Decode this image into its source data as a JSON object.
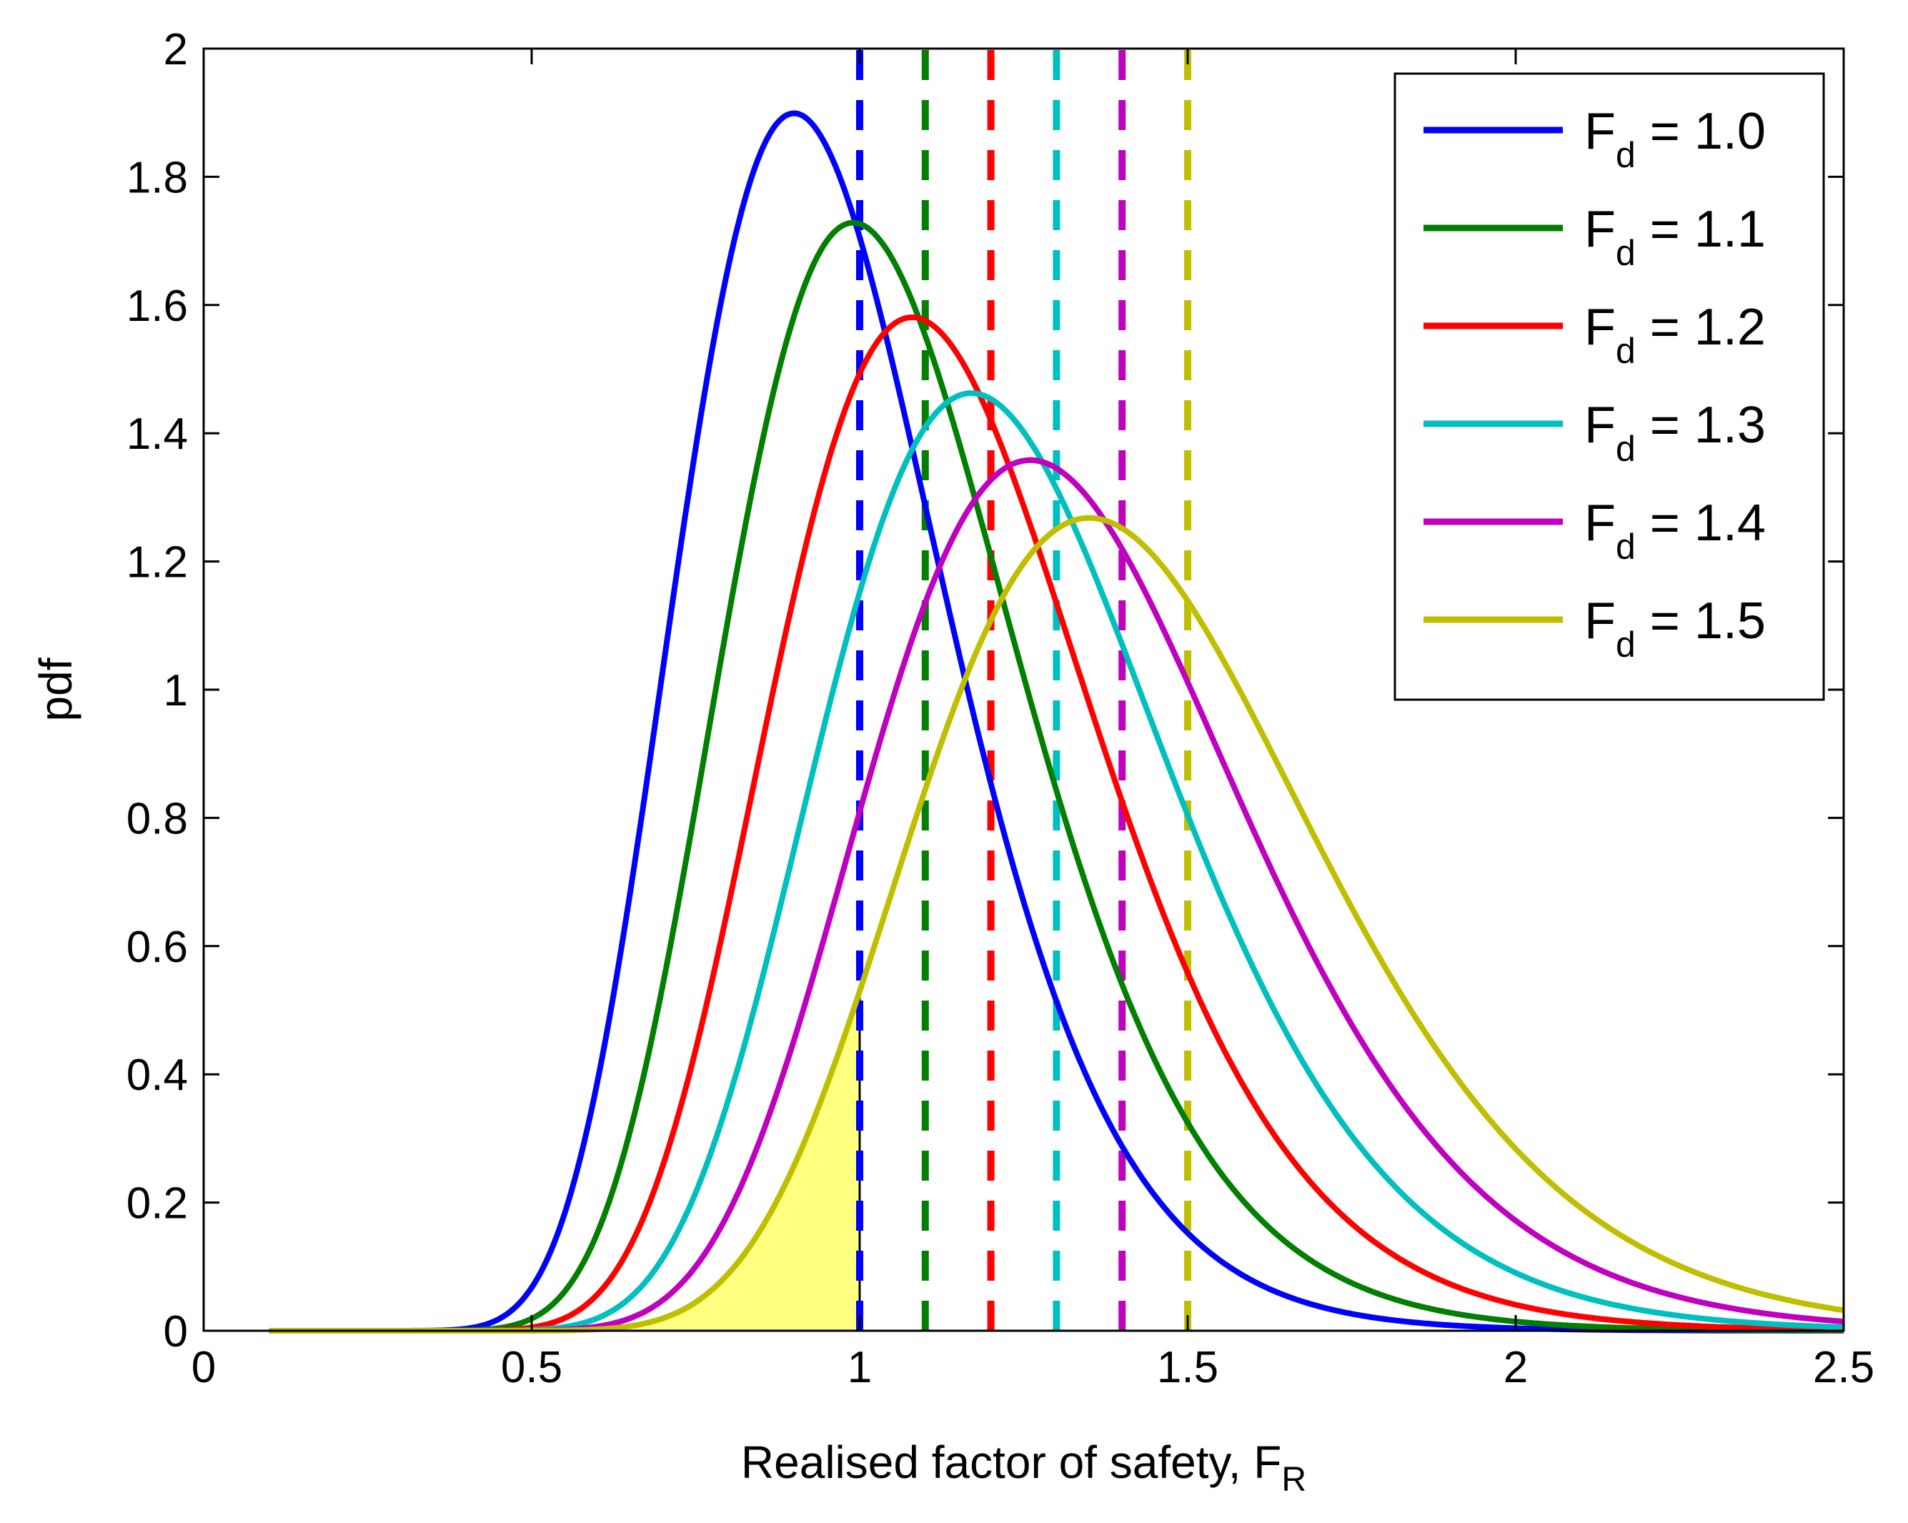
{
  "chart_data": {
    "type": "line",
    "title": "",
    "xlabel": "Realised factor of safety, F",
    "xlabel_subscript": "R",
    "ylabel": "pdf",
    "xlim": [
      0,
      2.5
    ],
    "ylim": [
      0,
      2
    ],
    "x_ticks": [
      "0",
      "0.5",
      "1",
      "1.5",
      "2",
      "2.5"
    ],
    "y_ticks": [
      "0",
      "0.2",
      "0.4",
      "0.6",
      "0.8",
      "1",
      "1.2",
      "1.4",
      "1.6",
      "1.8",
      "2"
    ],
    "grid": false,
    "legend_position": "top-right",
    "series": [
      {
        "name": "F_d = 1.0",
        "label_main": "F",
        "label_sub": "d",
        "label_rest": " = 1.0",
        "fd": 1.0,
        "peak_x": 0.9,
        "peak_y": 2.0,
        "color": "#0000ff"
      },
      {
        "name": "F_d = 1.1",
        "label_main": "F",
        "label_sub": "d",
        "label_rest": " = 1.1",
        "fd": 1.1,
        "peak_x": 0.99,
        "peak_y": 1.82,
        "color": "#007f00"
      },
      {
        "name": "F_d = 1.2",
        "label_main": "F",
        "label_sub": "d",
        "label_rest": " = 1.2",
        "fd": 1.2,
        "peak_x": 1.08,
        "peak_y": 1.665,
        "color": "#ff0000"
      },
      {
        "name": "F_d = 1.3",
        "label_main": "F",
        "label_sub": "d",
        "label_rest": " = 1.3",
        "fd": 1.3,
        "peak_x": 1.17,
        "peak_y": 1.54,
        "color": "#00bfbf"
      },
      {
        "name": "F_d = 1.4",
        "label_main": "F",
        "label_sub": "d",
        "label_rest": " = 1.4",
        "fd": 1.4,
        "peak_x": 1.26,
        "peak_y": 1.43,
        "color": "#bf00bf"
      },
      {
        "name": "F_d = 1.5",
        "label_main": "F",
        "label_sub": "d",
        "label_rest": " = 1.5",
        "fd": 1.5,
        "peak_x": 1.35,
        "peak_y": 1.335,
        "color": "#bfbf00"
      }
    ],
    "shaded_region": {
      "series": "F_d = 1.5",
      "x_from": 0,
      "x_to": 1.0,
      "fill": "#ffff80"
    }
  }
}
